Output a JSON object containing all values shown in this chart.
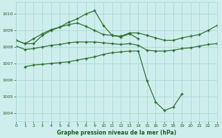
{
  "title": "Graphe pression niveau de la mer (hPa)",
  "bg_color": "#ceeeed",
  "grid_color": "#aad8d4",
  "line_color": "#2d6e2d",
  "xlim": [
    0,
    23
  ],
  "ylim": [
    1003.5,
    1010.7
  ],
  "yticks": [
    1004,
    1005,
    1006,
    1007,
    1008,
    1009,
    1010
  ],
  "xticks": [
    0,
    1,
    2,
    3,
    4,
    5,
    6,
    7,
    8,
    9,
    10,
    11,
    12,
    13,
    14,
    15,
    16,
    17,
    18,
    19,
    20,
    21,
    22,
    23
  ],
  "line1_x": [
    0,
    1,
    2,
    3,
    4,
    5,
    6,
    7,
    8,
    9,
    10,
    11,
    12,
    13,
    14
  ],
  "line1_y": [
    1008.4,
    1008.2,
    1008.2,
    1008.7,
    1009.0,
    1009.2,
    1009.5,
    1009.7,
    1010.0,
    1010.2,
    1009.3,
    1008.7,
    1008.6,
    1008.8,
    1008.5
  ],
  "line2_x": [
    0,
    1,
    2,
    3,
    4,
    5,
    6,
    7,
    8,
    9,
    10,
    11,
    12,
    13,
    14,
    15,
    16,
    17,
    18,
    19,
    20,
    21,
    22,
    23
  ],
  "line2_y": [
    1008.4,
    1008.2,
    1008.5,
    1008.8,
    1009.05,
    1009.2,
    1009.35,
    1009.45,
    1009.25,
    1009.0,
    1008.75,
    1008.7,
    1008.65,
    1008.85,
    1008.85,
    1008.7,
    1008.55,
    1008.4,
    1008.4,
    1008.55,
    1008.65,
    1008.75,
    1009.0,
    1009.3
  ],
  "line3_x": [
    0,
    1,
    2,
    3,
    4,
    5,
    6,
    7,
    8,
    9,
    10,
    11,
    12,
    13,
    14,
    15,
    16,
    17,
    18,
    19,
    20,
    21,
    22,
    23
  ],
  "line3_y": [
    1008.05,
    1007.85,
    1007.9,
    1008.0,
    1008.1,
    1008.15,
    1008.25,
    1008.3,
    1008.3,
    1008.3,
    1008.25,
    1008.2,
    1008.15,
    1008.2,
    1008.1,
    1007.8,
    1007.75,
    1007.75,
    1007.8,
    1007.9,
    1007.95,
    1008.05,
    1008.15,
    1008.2
  ],
  "line4_x": [
    1,
    2,
    3,
    4,
    5,
    6,
    7,
    8,
    9,
    10,
    11,
    12,
    13,
    14,
    15,
    16,
    17,
    18,
    19
  ],
  "line4_y": [
    1006.8,
    1006.9,
    1006.95,
    1007.0,
    1007.05,
    1007.1,
    1007.2,
    1007.3,
    1007.4,
    1007.55,
    1007.65,
    1007.7,
    1007.75,
    1007.75,
    1005.95,
    1004.65,
    1004.15,
    1004.35,
    1005.15
  ]
}
